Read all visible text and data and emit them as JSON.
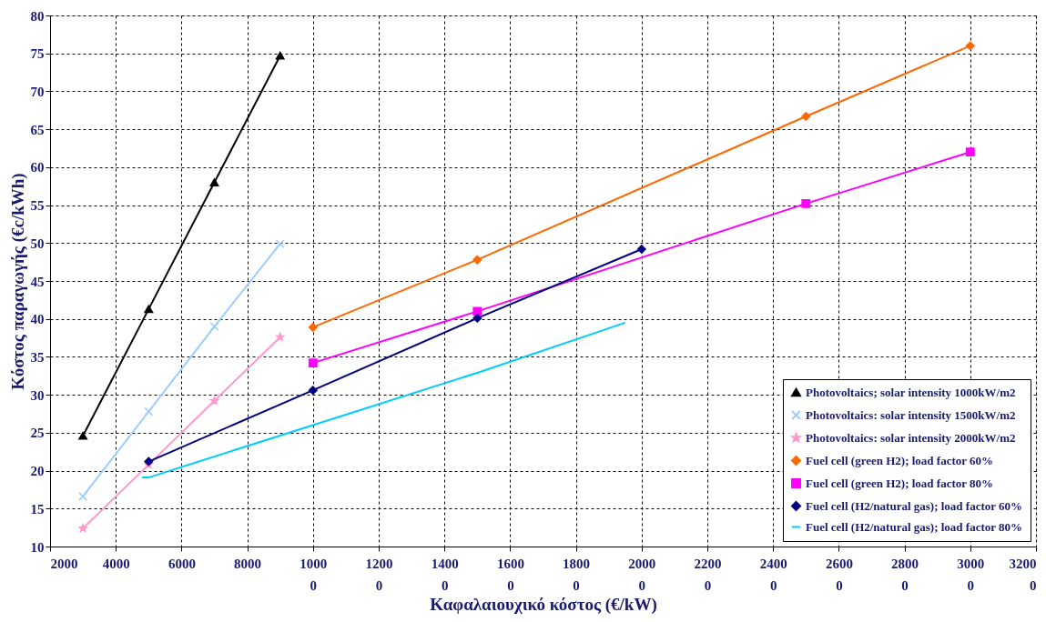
{
  "chart_data": {
    "type": "line",
    "xlabel": "Καφαλαιουχικό κόστος (€/kW)",
    "ylabel": "Κόστος παραγωγής (€c/kWh)",
    "xlim": [
      2000,
      32000
    ],
    "xticks": [
      2000,
      4000,
      6000,
      8000,
      10000,
      12000,
      14000,
      16000,
      18000,
      20000,
      22000,
      24000,
      26000,
      28000,
      30000,
      32000
    ],
    "ylim": [
      10,
      80
    ],
    "yticks": [
      10,
      15,
      20,
      25,
      30,
      35,
      40,
      45,
      50,
      55,
      60,
      65,
      70,
      75,
      80
    ],
    "grid": true,
    "legend": "bottom right",
    "line_style": "solid",
    "series": [
      {
        "name": "Photovoltaics; solar intensity 1000kW/m2",
        "color": "#000000",
        "marker": "triangle",
        "x": [
          3000,
          5000,
          7000,
          9000
        ],
        "values": [
          24.6,
          41.3,
          58,
          74.7
        ]
      },
      {
        "name": "Photovoltaics: solar intensity 1500kW/m2",
        "color": "#99ccff",
        "marker": "cross",
        "x": [
          3000,
          5000,
          7000,
          9000
        ],
        "values": [
          16.6,
          27.8,
          39,
          49.9
        ]
      },
      {
        "name": "Photovoltaics: solar intensity 2000kW/m2",
        "color": "#ff99cc",
        "marker": "star",
        "x": [
          3000,
          5000,
          7000,
          9000
        ],
        "values": [
          12.4,
          20.8,
          29.2,
          37.6
        ]
      },
      {
        "name": "Fuel cell (green H2); load factor 60%",
        "color": "#ff6600",
        "marker": "diamond",
        "x": [
          10000,
          15000,
          25000,
          30000
        ],
        "values": [
          38.9,
          47.8,
          66.7,
          76
        ]
      },
      {
        "name": "Fuel cell (green H2); load factor 80%",
        "color": "#ff00ff",
        "marker": "square",
        "x": [
          10000,
          15000,
          25000,
          30000
        ],
        "values": [
          34.2,
          41,
          55.2,
          62
        ]
      },
      {
        "name": "Fuel cell (H2/natural gas); load factor 60%",
        "color": "#000080",
        "marker": "diamond",
        "x": [
          5000,
          10000,
          15000,
          20000
        ],
        "values": [
          21.2,
          30.6,
          40.1,
          49.2
        ]
      },
      {
        "name": "Fuel cell (H2/natural gas); load factor 80%",
        "color": "#00ccff",
        "marker": "none",
        "x": [
          4800,
          5000,
          10000,
          15000,
          19500
        ],
        "values": [
          19.1,
          19.1,
          26,
          32.9,
          39.5
        ]
      }
    ]
  }
}
